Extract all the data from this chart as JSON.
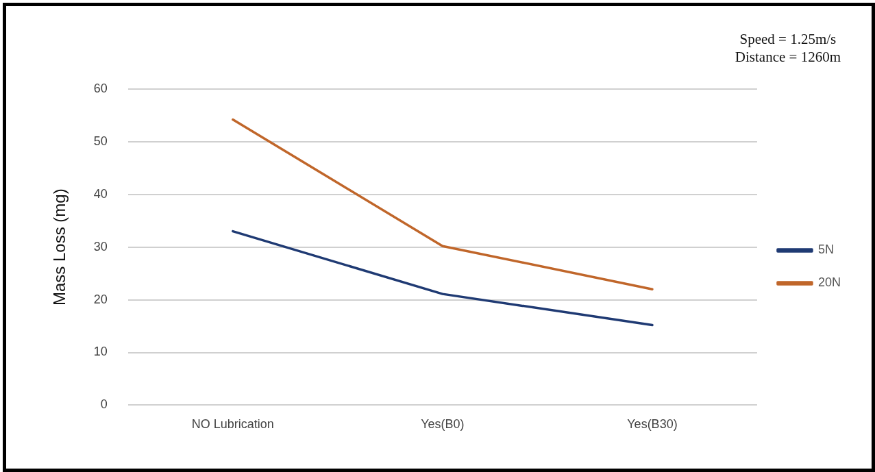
{
  "chart_data": {
    "type": "line",
    "ylabel": "Mass Loss (mg)",
    "categories": [
      "NO Lubrication",
      "Yes(B0)",
      "Yes(B30)"
    ],
    "series": [
      {
        "name": "5N",
        "color": "#1f3a73",
        "values": [
          33.0,
          21.1,
          15.2
        ]
      },
      {
        "name": "20N",
        "color": "#c0662a",
        "values": [
          54.2,
          30.2,
          22.0
        ]
      }
    ],
    "ylim": [
      0,
      60
    ],
    "yticks": [
      0,
      10,
      20,
      30,
      40,
      50,
      60
    ],
    "grid": "y",
    "legend": "right",
    "marker": "none",
    "line_style": "solid",
    "annotations": [
      "Speed = 1.25m/s\nDistance = 1260m"
    ]
  }
}
